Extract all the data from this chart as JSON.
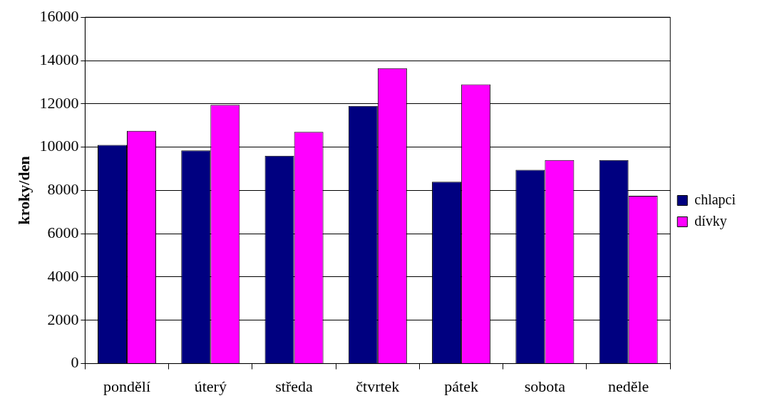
{
  "chart_data": {
    "type": "bar",
    "ylabel": "kroky/den",
    "categories": [
      "pondělí",
      "úterý",
      "středa",
      "čtvrtek",
      "pátek",
      "sobota",
      "neděle"
    ],
    "series": [
      {
        "name": "chlapci",
        "color": "#000080",
        "values": [
          10100,
          9850,
          9600,
          11900,
          8400,
          8950,
          9400
        ]
      },
      {
        "name": "dívky",
        "color": "#ff00ff",
        "values": [
          10750,
          11950,
          10700,
          13650,
          12900,
          9400,
          7750
        ]
      }
    ],
    "ylim": [
      0,
      16000
    ],
    "yticks": [
      0,
      2000,
      4000,
      6000,
      8000,
      10000,
      12000,
      14000,
      16000
    ],
    "grid": "y",
    "legend": "right"
  }
}
